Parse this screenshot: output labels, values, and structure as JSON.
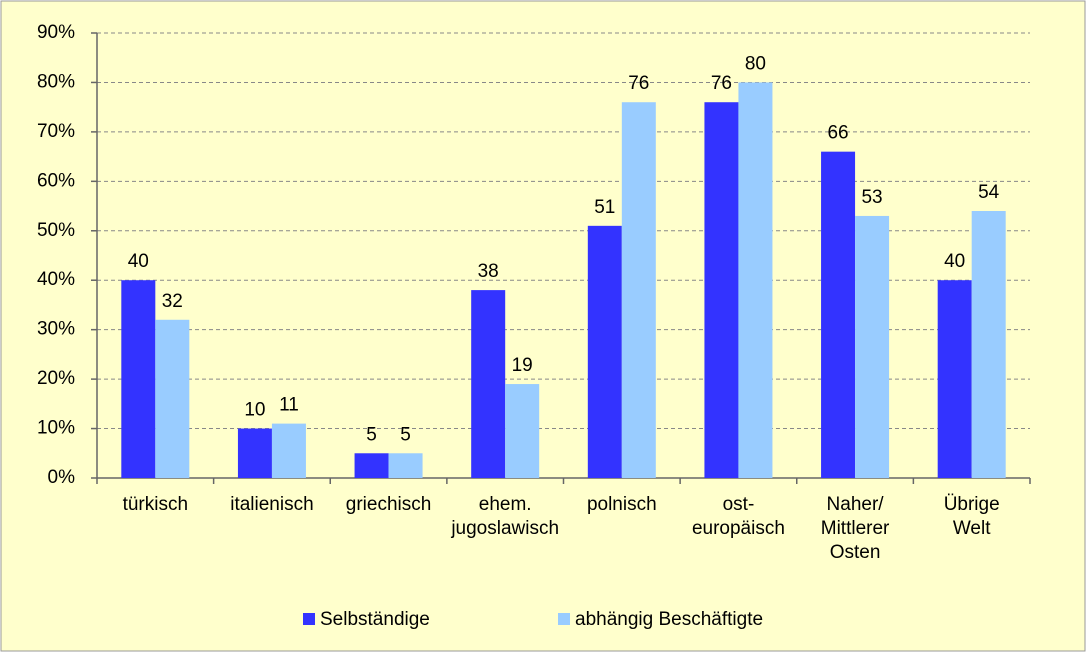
{
  "chart_data": {
    "type": "bar",
    "categories": [
      [
        "türkisch"
      ],
      [
        "italienisch"
      ],
      [
        "griechisch"
      ],
      [
        "ehem.",
        "jugoslawisch"
      ],
      [
        "polnisch"
      ],
      [
        "ost-",
        "europäisch"
      ],
      [
        "Naher/",
        "Mittlerer",
        "Osten"
      ],
      [
        "Übrige",
        "Welt"
      ]
    ],
    "series": [
      {
        "name": "Selbständige",
        "color": "#3333ff",
        "values": [
          40,
          10,
          5,
          38,
          51,
          76,
          66,
          40
        ]
      },
      {
        "name": "abhängig Beschäftigte",
        "color": "#99ccff",
        "values": [
          32,
          11,
          5,
          19,
          76,
          80,
          53,
          54
        ]
      }
    ],
    "ylim": [
      0,
      90
    ],
    "yticks": [
      {
        "value": 0,
        "label": "0%"
      },
      {
        "value": 10,
        "label": "10%"
      },
      {
        "value": 20,
        "label": "20%"
      },
      {
        "value": 30,
        "label": "30%"
      },
      {
        "value": 40,
        "label": "40%"
      },
      {
        "value": 50,
        "label": "50%"
      },
      {
        "value": 60,
        "label": "60%"
      },
      {
        "value": 70,
        "label": "70%"
      },
      {
        "value": 80,
        "label": "80%"
      },
      {
        "value": 90,
        "label": "90%"
      }
    ],
    "grid": true,
    "legend": "bottom"
  }
}
